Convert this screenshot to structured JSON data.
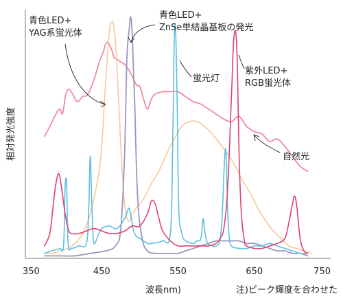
{
  "chart_data": {
    "type": "line",
    "title": "",
    "xlabel": "波長nm)",
    "ylabel": "相対発光強度",
    "note": "注)ピーク輝度を合わせた",
    "xlim": [
      350,
      750
    ],
    "ylim": [
      0,
      1.0
    ],
    "xticks": [
      350,
      450,
      550,
      650,
      750
    ],
    "grid": false,
    "legend": "none",
    "series": [
      {
        "name": "自然光",
        "label_lines": [
          "自然光"
        ],
        "color": "#f08aa0",
        "width": 1.8,
        "x": [
          375,
          382,
          390,
          395,
          398,
          400,
          403,
          407,
          412,
          418,
          425,
          432,
          440,
          447,
          452,
          455,
          458,
          460,
          463,
          466,
          470,
          475,
          480,
          487,
          495,
          500,
          505,
          510,
          515,
          520,
          530,
          540,
          550,
          560,
          570,
          580,
          590,
          600,
          610,
          620,
          630,
          640,
          650,
          660,
          670,
          680,
          690,
          700,
          710,
          720
        ],
        "y": [
          0.49,
          0.53,
          0.58,
          0.6,
          0.58,
          0.6,
          0.66,
          0.68,
          0.66,
          0.63,
          0.65,
          0.66,
          0.72,
          0.79,
          0.83,
          0.86,
          0.87,
          0.86,
          0.84,
          0.81,
          0.8,
          0.79,
          0.78,
          0.75,
          0.7,
          0.69,
          0.64,
          0.6,
          0.64,
          0.66,
          0.67,
          0.67,
          0.67,
          0.65,
          0.63,
          0.62,
          0.6,
          0.58,
          0.56,
          0.55,
          0.57,
          0.53,
          0.51,
          0.5,
          0.47,
          0.48,
          0.45,
          0.41,
          0.37,
          0.35
        ]
      },
      {
        "name": "青色LED+YAG系蛍光体",
        "label_lines": [
          "青色LED+",
          "YAG系蛍光体"
        ],
        "color": "#f7c89a",
        "width": 1.6,
        "x": [
          375,
          385,
          395,
          405,
          415,
          425,
          435,
          445,
          450,
          455,
          460,
          463,
          466,
          470,
          475,
          480,
          485,
          490,
          495,
          500,
          507,
          515,
          525,
          535,
          545,
          555,
          565,
          575,
          585,
          595,
          605,
          615,
          625,
          635,
          645,
          655,
          665,
          675,
          685,
          695,
          705,
          715,
          725
        ],
        "y": [
          0.02,
          0.02,
          0.03,
          0.04,
          0.06,
          0.1,
          0.18,
          0.32,
          0.45,
          0.7,
          0.91,
          0.95,
          0.93,
          0.78,
          0.45,
          0.22,
          0.15,
          0.18,
          0.2,
          0.22,
          0.25,
          0.3,
          0.35,
          0.42,
          0.48,
          0.53,
          0.55,
          0.55,
          0.53,
          0.5,
          0.46,
          0.42,
          0.37,
          0.31,
          0.26,
          0.2,
          0.15,
          0.11,
          0.08,
          0.05,
          0.04,
          0.03,
          0.02
        ]
      },
      {
        "name": "青色LED+ZnSe単結晶基板の発光",
        "label_lines": [
          "青色LED+",
          "ZnSe単結晶基板の発光"
        ],
        "color": "#9b95bf",
        "width": 1.8,
        "x": [
          375,
          395,
          415,
          435,
          455,
          468,
          475,
          480,
          483,
          486,
          488,
          490,
          493,
          497,
          503,
          510,
          520,
          530,
          540,
          550,
          560,
          570,
          580,
          590,
          600,
          610,
          620,
          630,
          640,
          650,
          660,
          670,
          680,
          690,
          700,
          710,
          720
        ],
        "y": [
          0.01,
          0.01,
          0.01,
          0.02,
          0.03,
          0.05,
          0.12,
          0.42,
          0.8,
          0.92,
          0.97,
          0.9,
          0.65,
          0.25,
          0.08,
          0.03,
          0.02,
          0.02,
          0.02,
          0.02,
          0.03,
          0.04,
          0.05,
          0.06,
          0.07,
          0.07,
          0.07,
          0.07,
          0.06,
          0.06,
          0.05,
          0.04,
          0.03,
          0.03,
          0.02,
          0.02,
          0.01
        ]
      },
      {
        "name": "蛍光灯",
        "label_lines": [
          "蛍光灯"
        ],
        "color": "#5bbfe0",
        "width": 1.6,
        "x": [
          375,
          385,
          395,
          400,
          402,
          404,
          406,
          410,
          420,
          430,
          433,
          435,
          437,
          439,
          441,
          445,
          450,
          460,
          470,
          480,
          485,
          487,
          489,
          491,
          495,
          500,
          510,
          515,
          530,
          540,
          543,
          545,
          547,
          549,
          551,
          555,
          560,
          570,
          575,
          580,
          583,
          585,
          587,
          589,
          595,
          600,
          605,
          608,
          611,
          613,
          615,
          617,
          620,
          630,
          640,
          650,
          660,
          670,
          680,
          690,
          700,
          710,
          720
        ],
        "y": [
          0.02,
          0.03,
          0.04,
          0.05,
          0.28,
          0.3,
          0.06,
          0.04,
          0.05,
          0.06,
          0.2,
          0.41,
          0.22,
          0.08,
          0.06,
          0.09,
          0.12,
          0.13,
          0.12,
          0.16,
          0.2,
          0.19,
          0.16,
          0.12,
          0.09,
          0.08,
          0.06,
          0.06,
          0.07,
          0.1,
          0.45,
          0.88,
          0.9,
          0.6,
          0.2,
          0.1,
          0.07,
          0.06,
          0.07,
          0.08,
          0.16,
          0.11,
          0.08,
          0.06,
          0.05,
          0.05,
          0.07,
          0.18,
          0.4,
          0.42,
          0.2,
          0.09,
          0.05,
          0.04,
          0.04,
          0.05,
          0.05,
          0.06,
          0.05,
          0.04,
          0.03,
          0.02,
          0.02
        ]
      },
      {
        "name": "紫外LED+RGB蛍光体",
        "label_lines": [
          "紫外LED+",
          "RGB蛍光体"
        ],
        "color": "#e04070",
        "width": 1.6,
        "x": [
          375,
          382,
          386,
          390,
          394,
          398,
          402,
          406,
          410,
          420,
          430,
          440,
          450,
          460,
          470,
          480,
          490,
          500,
          510,
          515,
          520,
          525,
          530,
          540,
          550,
          560,
          570,
          580,
          590,
          600,
          605,
          610,
          615,
          620,
          623,
          626,
          628,
          630,
          633,
          637,
          640,
          650,
          660,
          670,
          680,
          690,
          695,
          700,
          703,
          706,
          710,
          715,
          720
        ],
        "y": [
          0.05,
          0.1,
          0.2,
          0.3,
          0.34,
          0.27,
          0.18,
          0.12,
          0.1,
          0.1,
          0.11,
          0.12,
          0.11,
          0.1,
          0.1,
          0.11,
          0.13,
          0.13,
          0.18,
          0.23,
          0.22,
          0.16,
          0.11,
          0.07,
          0.05,
          0.05,
          0.05,
          0.05,
          0.05,
          0.06,
          0.08,
          0.12,
          0.28,
          0.65,
          0.88,
          0.9,
          0.75,
          0.42,
          0.18,
          0.07,
          0.05,
          0.04,
          0.04,
          0.05,
          0.06,
          0.08,
          0.14,
          0.22,
          0.25,
          0.2,
          0.08,
          0.03,
          0.02
        ]
      }
    ]
  }
}
